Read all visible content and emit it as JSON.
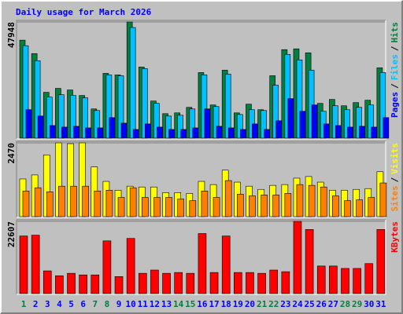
{
  "title": "Daily usage for March 2026",
  "legend_separator": "/",
  "chart_data": [
    {
      "type": "bar",
      "ylim": [
        0,
        47948
      ],
      "yticks": [
        47948
      ],
      "series": [
        {
          "name": "Hits",
          "color": "#008040",
          "values": [
            40450,
            34903,
            18920,
            20551,
            19898,
            17615,
            12069,
            26748,
            26096,
            47948,
            29358,
            15331,
            10112,
            10438,
            12722,
            27074,
            13700,
            28053,
            10438,
            14027,
            11743,
            25770,
            36534,
            36861,
            35230,
            14353,
            15984,
            13374,
            14679,
            15657,
            29032
          ]
        },
        {
          "name": "Files",
          "color": "#00c0ff",
          "values": [
            38164,
            31968,
            16962,
            17941,
            17615,
            16636,
            11417,
            26096,
            25770,
            45669,
            28706,
            14353,
            9134,
            9460,
            12069,
            26096,
            13048,
            26422,
            9786,
            11743,
            11417,
            21855,
            34577,
            32294,
            28053,
            11091,
            13374,
            11743,
            12722,
            13700,
            27074
          ]
        },
        {
          "name": "Pages",
          "color": "#0000ff",
          "values": [
            11743,
            9134,
            5219,
            4567,
            4893,
            4241,
            4241,
            8481,
            6198,
            3588,
            5872,
            4567,
            3588,
            3588,
            4241,
            12069,
            4893,
            4241,
            3588,
            5872,
            3588,
            7176,
            16310,
            11091,
            13700,
            5872,
            5219,
            4567,
            4893,
            4567,
            8481
          ]
        }
      ]
    },
    {
      "type": "bar",
      "ylim": [
        0,
        2470
      ],
      "yticks": [
        2470
      ],
      "series": [
        {
          "name": "Visits",
          "color": "#ffff00",
          "values": [
            1262,
            1396,
            2067,
            2470,
            2443,
            2470,
            1665,
            1181,
            886,
            1020,
            993,
            993,
            806,
            806,
            779,
            1181,
            1074,
            1557,
            1155,
            1020,
            913,
            1047,
            1074,
            1289,
            1343,
            1155,
            886,
            886,
            913,
            940,
            1504
          ]
        },
        {
          "name": "Sites",
          "color": "#ff8000",
          "values": [
            859,
            967,
            832,
            1020,
            1020,
            1020,
            859,
            886,
            644,
            967,
            644,
            644,
            644,
            591,
            537,
            859,
            644,
            1208,
            752,
            698,
            725,
            725,
            779,
            1074,
            1047,
            993,
            698,
            537,
            564,
            644,
            1128
          ]
        }
      ]
    },
    {
      "type": "bar",
      "ylim": [
        0,
        22607
      ],
      "yticks": [
        22607
      ],
      "categories": [
        "1",
        "2",
        "3",
        "4",
        "5",
        "6",
        "7",
        "8",
        "9",
        "10",
        "11",
        "12",
        "13",
        "14",
        "15",
        "16",
        "17",
        "18",
        "19",
        "20",
        "21",
        "22",
        "23",
        "24",
        "25",
        "26",
        "27",
        "28",
        "29",
        "30",
        "31"
      ],
      "category_colors": [
        "#008040",
        "#0000ff",
        "#0000ff",
        "#0000ff",
        "#0000ff",
        "#0000ff",
        "#008040",
        "#008040",
        "#0000ff",
        "#0000ff",
        "#0000ff",
        "#0000ff",
        "#0000ff",
        "#008040",
        "#008040",
        "#0000ff",
        "#0000ff",
        "#0000ff",
        "#0000ff",
        "#0000ff",
        "#008040",
        "#008040",
        "#0000ff",
        "#0000ff",
        "#0000ff",
        "#0000ff",
        "#0000ff",
        "#008040",
        "#008040",
        "#0000ff",
        "#0000ff"
      ],
      "series": [
        {
          "name": "KBytes",
          "color": "#ff0000",
          "values": [
            18034,
            18288,
            7112,
            5588,
            6350,
            5842,
            5842,
            16510,
            5334,
            17272,
            6350,
            7366,
            6350,
            6604,
            6350,
            18796,
            6604,
            18034,
            6604,
            6604,
            6350,
            7366,
            6858,
            22607,
            20066,
            8636,
            8636,
            7874,
            7874,
            9398,
            20066
          ]
        }
      ]
    }
  ]
}
